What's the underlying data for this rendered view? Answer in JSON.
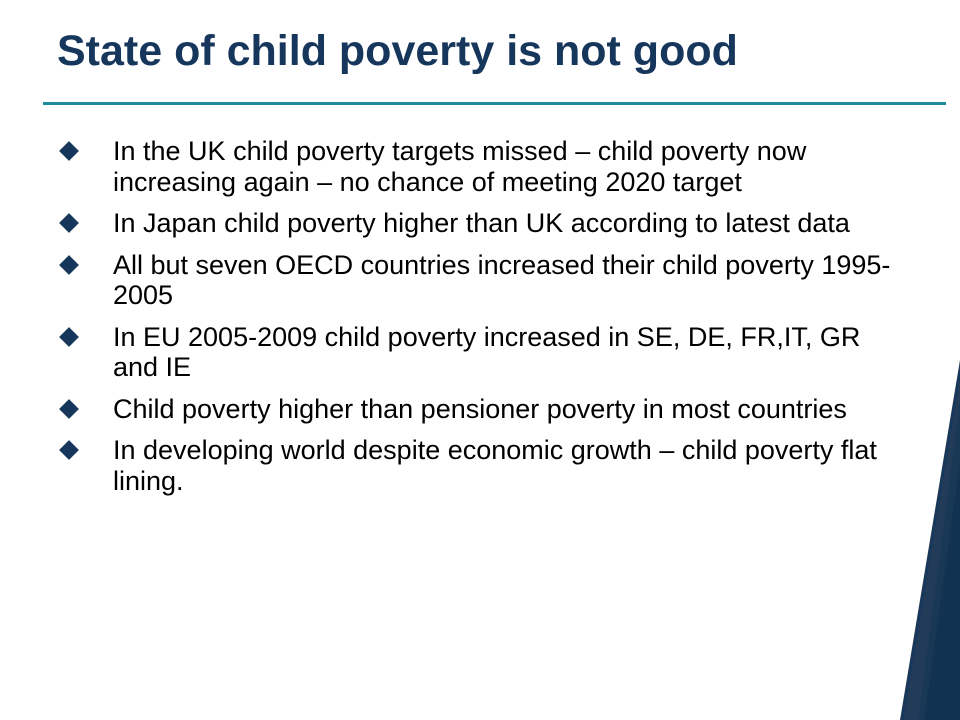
{
  "slide": {
    "title": "State of child poverty is not good",
    "bullets": [
      "In the UK child poverty targets missed – child poverty now increasing again – no chance of meeting 2020 target",
      "In Japan child poverty higher than UK according to latest data",
      "All but seven OECD countries increased their child poverty 1995-2005",
      "In EU 2005-2009 child poverty increased in SE, DE, FR,IT, GR and IE",
      "Child poverty higher than pensioner poverty in most countries",
      "In developing world despite economic growth – child poverty flat lining."
    ]
  },
  "theme": {
    "title_color": "#16365c",
    "rule_color": "#1f8c9a",
    "bullet_color": "#16365c",
    "accent_dark": "#0f2a4a",
    "accent_light": "#7fd0d8"
  },
  "icons": {
    "bullet": "diamond-bullet-icon"
  }
}
